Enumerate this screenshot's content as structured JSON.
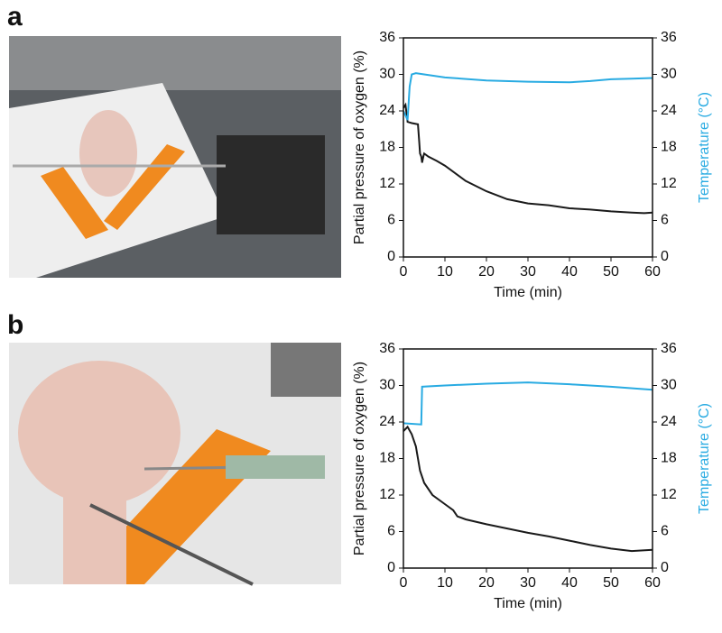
{
  "panel_labels": [
    "a",
    "b"
  ],
  "chart_data": [
    {
      "type": "line",
      "xlabel": "Time (min)",
      "ylabel": "Partial pressure of oxygen (%)",
      "y2label": "Temperature (°C)",
      "xlim": [
        0,
        60
      ],
      "xticks": [
        0,
        10,
        20,
        30,
        40,
        50,
        60
      ],
      "ylim": [
        0,
        36
      ],
      "yticks": [
        0,
        6,
        12,
        18,
        24,
        30,
        36
      ],
      "y2lim": [
        0,
        36
      ],
      "y2ticks": [
        0,
        6,
        12,
        18,
        24,
        30,
        36
      ],
      "series": [
        {
          "name": "Partial pressure of oxygen",
          "color": "#1a1a1a",
          "axis": "y",
          "x": [
            0,
            0.5,
            1,
            2,
            3.5,
            3.8,
            4,
            4.3,
            4.5,
            4.8,
            5,
            6,
            8,
            10,
            15,
            20,
            25,
            30,
            35,
            40,
            45,
            50,
            55,
            58,
            60
          ],
          "values": [
            24.5,
            25,
            22.2,
            22,
            21.8,
            19,
            17,
            16.5,
            15.5,
            16.5,
            17,
            16.5,
            15.8,
            15,
            12.5,
            10.8,
            9.5,
            8.8,
            8.5,
            8,
            7.8,
            7.5,
            7.3,
            7.2,
            7.3
          ]
        },
        {
          "name": "Temperature",
          "color": "#29abe2",
          "axis": "y2",
          "x": [
            0,
            1,
            1.5,
            2,
            3,
            5,
            10,
            20,
            30,
            40,
            45,
            50,
            55,
            60
          ],
          "values": [
            24,
            22.5,
            28,
            30,
            30.2,
            30,
            29.5,
            29,
            28.8,
            28.7,
            28.9,
            29.2,
            29.3,
            29.4
          ]
        }
      ]
    },
    {
      "type": "line",
      "xlabel": "Time (min)",
      "ylabel": "Partial pressure of oxygen (%)",
      "y2label": "Temperature (°C)",
      "xlim": [
        0,
        60
      ],
      "xticks": [
        0,
        10,
        20,
        30,
        40,
        50,
        60
      ],
      "ylim": [
        0,
        36
      ],
      "yticks": [
        0,
        6,
        12,
        18,
        24,
        30,
        36
      ],
      "y2lim": [
        0,
        36
      ],
      "y2ticks": [
        0,
        6,
        12,
        18,
        24,
        30,
        36
      ],
      "series": [
        {
          "name": "Partial pressure of oxygen",
          "color": "#1a1a1a",
          "axis": "y",
          "x": [
            0,
            1,
            2,
            3,
            4,
            5,
            7,
            10,
            12,
            13,
            15,
            20,
            25,
            30,
            35,
            40,
            45,
            50,
            55,
            60
          ],
          "values": [
            22.5,
            23.2,
            22,
            20,
            16,
            14,
            12,
            10.5,
            9.5,
            8.5,
            8,
            7.2,
            6.5,
            5.8,
            5.2,
            4.5,
            3.8,
            3.2,
            2.8,
            3
          ]
        },
        {
          "name": "Temperature",
          "color": "#29abe2",
          "axis": "y2",
          "x": [
            0,
            4.3,
            4.5,
            10,
            20,
            30,
            40,
            50,
            60
          ],
          "values": [
            23.8,
            23.6,
            29.8,
            30,
            30.3,
            30.5,
            30.2,
            29.8,
            29.3
          ]
        }
      ]
    }
  ]
}
